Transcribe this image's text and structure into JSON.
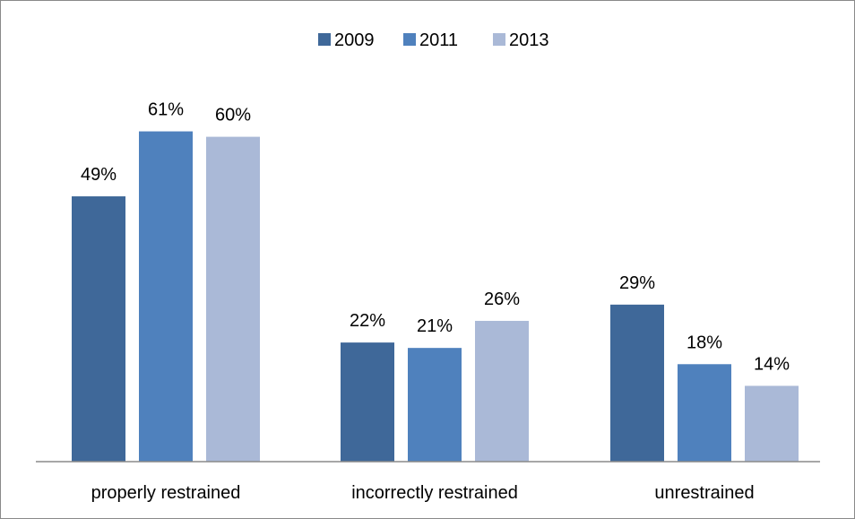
{
  "chart_data": {
    "type": "bar",
    "categories": [
      "properly restrained",
      "incorrectly restrained",
      "unrestrained"
    ],
    "series": [
      {
        "name": "2009",
        "values": [
          49,
          22,
          29
        ],
        "color": "#3f6899"
      },
      {
        "name": "2011",
        "values": [
          61,
          21,
          18
        ],
        "color": "#4f81bd"
      },
      {
        "name": "2013",
        "values": [
          60,
          26,
          14
        ],
        "color": "#aab9d7"
      }
    ],
    "value_labels": [
      [
        "49%",
        "22%",
        "29%"
      ],
      [
        "61%",
        "21%",
        "18%"
      ],
      [
        "60%",
        "26%",
        "14%"
      ]
    ],
    "ylim": [
      0,
      70
    ],
    "grid": false,
    "legend_position": "top-center"
  }
}
